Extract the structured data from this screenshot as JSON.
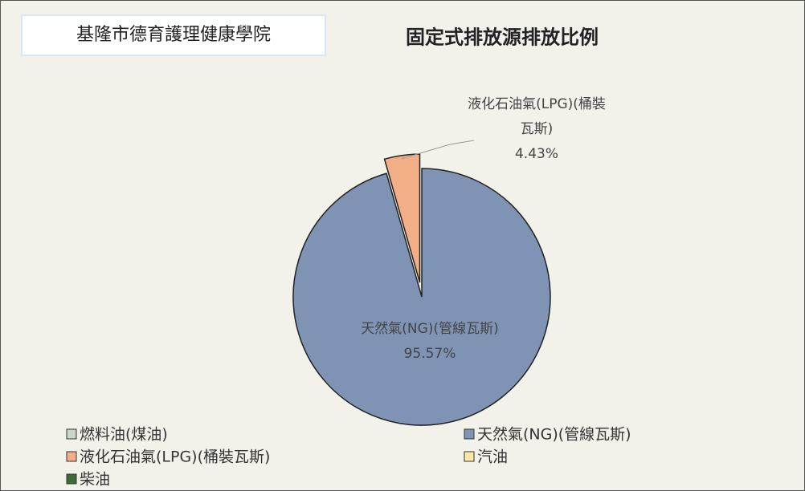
{
  "school": "基隆市德育護理健康學院",
  "chart_data": {
    "type": "pie",
    "title": "固定式排放源排放比例",
    "categories": [
      "燃料油(煤油)",
      "天然氣(NG)(管線瓦斯)",
      "液化石油氣(LPG)(桶裝瓦斯)",
      "汽油",
      "柴油"
    ],
    "values": [
      0,
      95.57,
      4.43,
      0,
      0
    ],
    "value_labels": [
      null,
      "95.57%",
      "4.43%",
      null,
      null
    ],
    "colors": [
      "#c9d6c6",
      "#7f93b4",
      "#f2ae86",
      "#fbe7a6",
      "#3e6b35"
    ],
    "exploded": [
      2
    ]
  }
}
